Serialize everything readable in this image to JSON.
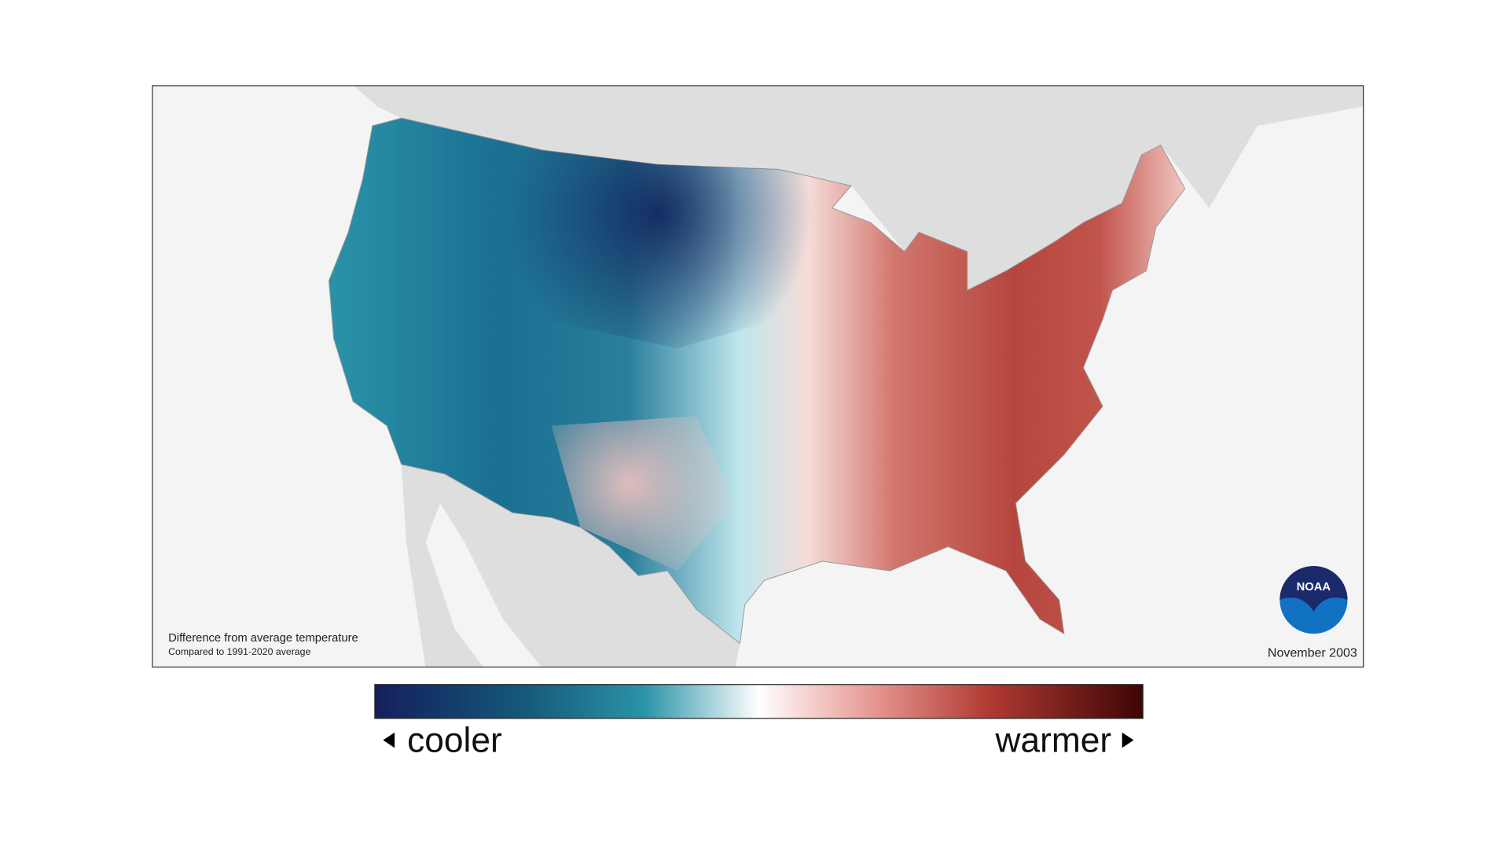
{
  "map": {
    "caption": "Difference from average temperature",
    "subcaption": "Compared to 1991-2020 average",
    "date": "November 2003",
    "logo": "NOAA"
  },
  "legend": {
    "low": "cooler",
    "high": "warmer"
  }
}
